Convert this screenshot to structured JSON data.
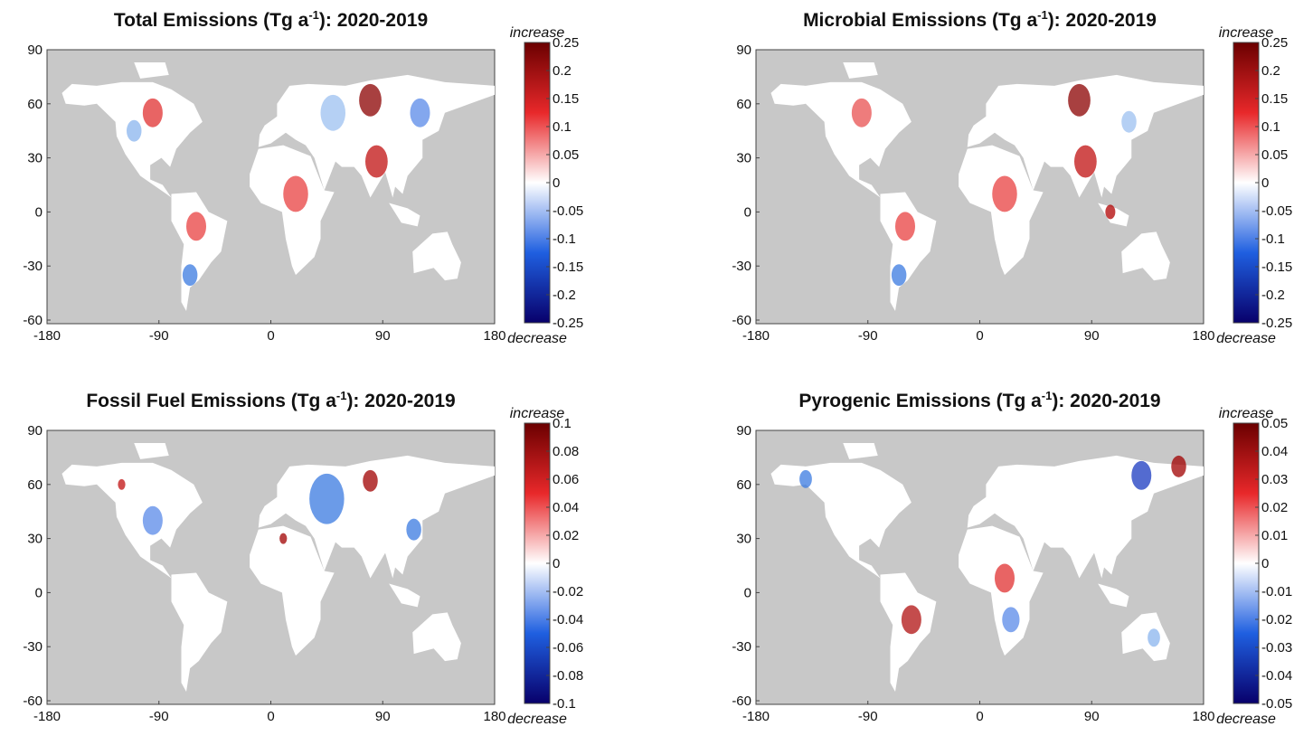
{
  "chart_data": [
    {
      "type": "map",
      "title": {
        "text": "Total Emissions (Tg a",
        "superscript": "-1",
        "suffix": "): 2020-2019"
      },
      "xlim": [
        -180,
        180
      ],
      "ylim": [
        -62,
        90
      ],
      "xticks": [
        -180,
        -90,
        0,
        90,
        180
      ],
      "yticks": [
        90,
        60,
        30,
        0,
        -30,
        -60
      ],
      "colorbar": {
        "clim": [
          -0.25,
          0.25
        ],
        "ticks": [
          0.25,
          0.2,
          0.15,
          0.1,
          0.05,
          0,
          -0.05,
          -0.1,
          -0.15,
          -0.2,
          -0.25
        ],
        "high_label": "increase",
        "low_label": "decrease",
        "colors": [
          "#08006b",
          "#1f5fe0",
          "#ffffff",
          "#e8282a",
          "#6b0000"
        ]
      }
    },
    {
      "type": "map",
      "title": {
        "text": "Microbial Emissions (Tg a",
        "superscript": "-1",
        "suffix": "): 2020-2019"
      },
      "xlim": [
        -180,
        180
      ],
      "ylim": [
        -62,
        90
      ],
      "xticks": [
        -180,
        -90,
        0,
        90,
        180
      ],
      "yticks": [
        90,
        60,
        30,
        0,
        -30,
        -60
      ],
      "colorbar": {
        "clim": [
          -0.25,
          0.25
        ],
        "ticks": [
          0.25,
          0.2,
          0.15,
          0.1,
          0.05,
          0,
          -0.05,
          -0.1,
          -0.15,
          -0.2,
          -0.25
        ],
        "high_label": "increase",
        "low_label": "decrease",
        "colors": [
          "#08006b",
          "#1f5fe0",
          "#ffffff",
          "#e8282a",
          "#6b0000"
        ]
      }
    },
    {
      "type": "map",
      "title": {
        "text": "Fossil Fuel Emissions (Tg a",
        "superscript": "-1",
        "suffix": "): 2020-2019"
      },
      "xlim": [
        -180,
        180
      ],
      "ylim": [
        -62,
        90
      ],
      "xticks": [
        -180,
        -90,
        0,
        90,
        180
      ],
      "yticks": [
        90,
        60,
        30,
        0,
        -30,
        -60
      ],
      "colorbar": {
        "clim": [
          -0.1,
          0.1
        ],
        "ticks": [
          0.1,
          0.08,
          0.06,
          0.04,
          0.02,
          0,
          -0.02,
          -0.04,
          -0.06,
          -0.08,
          -0.1
        ],
        "high_label": "increase",
        "low_label": "decrease",
        "colors": [
          "#08006b",
          "#1f5fe0",
          "#ffffff",
          "#e8282a",
          "#6b0000"
        ]
      }
    },
    {
      "type": "map",
      "title": {
        "text": "Pyrogenic Emissions (Tg a",
        "superscript": "-1",
        "suffix": "): 2020-2019"
      },
      "xlim": [
        -180,
        180
      ],
      "ylim": [
        -62,
        90
      ],
      "xticks": [
        -180,
        -90,
        0,
        90,
        180
      ],
      "yticks": [
        90,
        60,
        30,
        0,
        -30,
        -60
      ],
      "colorbar": {
        "clim": [
          -0.05,
          0.05
        ],
        "ticks": [
          0.05,
          0.04,
          0.03,
          0.02,
          0.01,
          0,
          -0.01,
          -0.02,
          -0.03,
          -0.04,
          -0.05
        ],
        "high_label": "increase",
        "low_label": "decrease",
        "colors": [
          "#08006b",
          "#1f5fe0",
          "#ffffff",
          "#e8282a",
          "#6b0000"
        ]
      }
    }
  ]
}
